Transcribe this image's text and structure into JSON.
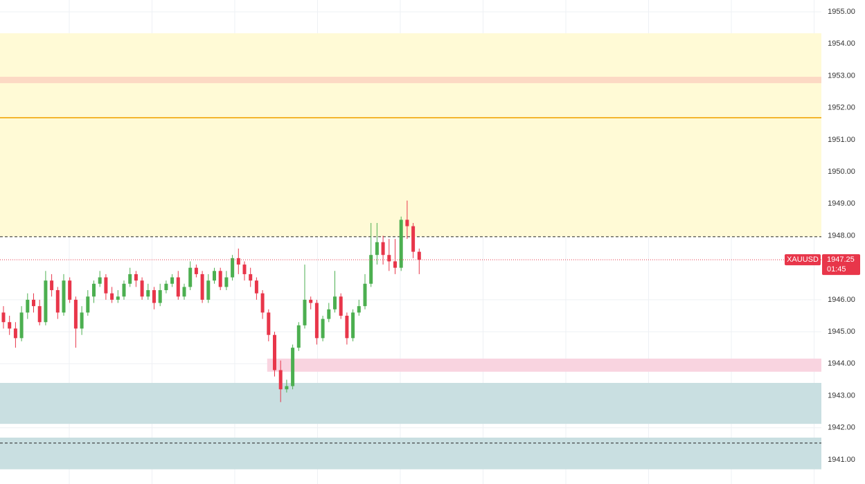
{
  "chart_data": {
    "type": "candlestick",
    "symbol": "XAUUSD",
    "countdown": "01:45",
    "up_color": "#4caf50",
    "down_color": "#e8364a",
    "grid": true,
    "ylim": [
      1940.24,
      1955.37
    ],
    "yticks": [
      {
        "value": 1941,
        "label": "1941.00"
      },
      {
        "value": 1942,
        "label": "1942.00"
      },
      {
        "value": 1943,
        "label": "1943.00"
      },
      {
        "value": 1944,
        "label": "1944.00"
      },
      {
        "value": 1945,
        "label": "1945.00"
      },
      {
        "value": 1946,
        "label": "1946.00"
      },
      {
        "value": 1948,
        "label": "1948.00"
      },
      {
        "value": 1949,
        "label": "1949.00"
      },
      {
        "value": 1950,
        "label": "1950.00"
      },
      {
        "value": 1951,
        "label": "1951.00"
      },
      {
        "value": 1952,
        "label": "1952.00"
      },
      {
        "value": 1953,
        "label": "1953.00"
      },
      {
        "value": 1954,
        "label": "1954.00"
      },
      {
        "value": 1955,
        "label": "1955.00"
      }
    ],
    "open": [
      1945.6,
      1945.3,
      1945.1,
      1944.8,
      1945.6,
      1946.0,
      1945.8,
      1945.3,
      1946.6,
      1946.3,
      1945.6,
      1946.6,
      1946.0,
      1945.1,
      1945.6,
      1946.1,
      1946.5,
      1946.7,
      1946.2,
      1946.0,
      1946.1,
      1946.5,
      1946.8,
      1946.6,
      1946.1,
      1946.3,
      1945.9,
      1946.3,
      1946.5,
      1946.7,
      1946.1,
      1946.4,
      1947.0,
      1946.8,
      1946.0,
      1946.6,
      1946.9,
      1946.4,
      1946.7,
      1947.3,
      1947.1,
      1946.8,
      1946.6,
      1946.2,
      1945.6,
      1944.9,
      1943.8,
      1943.2,
      1943.3,
      1944.5,
      1945.2,
      1946.0,
      1945.9,
      1944.8,
      1945.4,
      1945.7,
      1946.1,
      1945.5,
      1944.8,
      1945.6,
      1945.8,
      1946.5,
      1947.4,
      1947.8,
      1947.4,
      1947.2,
      1947.0,
      1948.5,
      1948.3,
      1947.5
    ],
    "high": [
      1945.8,
      1945.5,
      1945.3,
      1945.8,
      1946.2,
      1946.2,
      1946.0,
      1946.9,
      1946.8,
      1946.4,
      1946.8,
      1946.7,
      1946.1,
      1945.8,
      1946.3,
      1946.6,
      1946.9,
      1946.8,
      1946.4,
      1946.3,
      1946.6,
      1947.0,
      1946.9,
      1946.7,
      1946.5,
      1946.4,
      1946.5,
      1946.6,
      1946.8,
      1946.9,
      1946.5,
      1947.2,
      1947.1,
      1946.9,
      1946.8,
      1947.0,
      1947.0,
      1946.9,
      1947.4,
      1947.6,
      1947.2,
      1947.0,
      1946.7,
      1946.3,
      1945.7,
      1945.0,
      1944.1,
      1943.5,
      1944.6,
      1945.3,
      1947.1,
      1946.1,
      1946.0,
      1945.5,
      1945.9,
      1946.9,
      1946.2,
      1945.6,
      1945.7,
      1946.0,
      1946.8,
      1948.4,
      1948.4,
      1948.0,
      1947.9,
      1947.9,
      1948.6,
      1949.1,
      1948.4,
      1947.6
    ],
    "low": [
      1945.1,
      1944.9,
      1944.5,
      1944.7,
      1945.4,
      1945.6,
      1945.2,
      1945.2,
      1946.1,
      1945.4,
      1945.5,
      1945.9,
      1944.5,
      1944.9,
      1945.5,
      1945.9,
      1946.4,
      1946.0,
      1945.9,
      1945.9,
      1946.0,
      1946.4,
      1946.4,
      1946.0,
      1946.0,
      1945.7,
      1945.8,
      1946.2,
      1946.4,
      1946.0,
      1946.0,
      1946.3,
      1946.7,
      1945.9,
      1945.9,
      1946.5,
      1946.3,
      1946.3,
      1946.6,
      1946.8,
      1946.6,
      1946.4,
      1946.0,
      1945.4,
      1944.7,
      1943.6,
      1942.8,
      1943.1,
      1943.2,
      1944.4,
      1945.1,
      1945.7,
      1944.6,
      1944.7,
      1945.3,
      1945.6,
      1945.4,
      1944.6,
      1944.7,
      1945.5,
      1945.7,
      1946.4,
      1947.1,
      1947.1,
      1946.9,
      1946.8,
      1946.9,
      1947.9,
      1947.3,
      1946.8
    ],
    "close": [
      1945.3,
      1945.1,
      1944.8,
      1945.6,
      1946.0,
      1945.8,
      1945.3,
      1946.6,
      1946.3,
      1945.6,
      1946.6,
      1946.0,
      1945.1,
      1945.6,
      1946.1,
      1946.5,
      1946.7,
      1946.2,
      1946.0,
      1946.1,
      1946.5,
      1946.8,
      1946.6,
      1946.1,
      1946.3,
      1945.9,
      1946.3,
      1946.5,
      1946.7,
      1946.1,
      1946.4,
      1947.0,
      1946.8,
      1946.0,
      1946.6,
      1946.9,
      1946.4,
      1946.7,
      1947.3,
      1947.1,
      1946.8,
      1946.6,
      1946.2,
      1945.6,
      1944.9,
      1943.8,
      1943.2,
      1943.3,
      1944.5,
      1945.2,
      1946.0,
      1945.9,
      1944.8,
      1945.4,
      1945.7,
      1946.1,
      1945.5,
      1944.8,
      1945.6,
      1945.8,
      1946.5,
      1947.4,
      1947.8,
      1947.4,
      1947.2,
      1947.0,
      1948.5,
      1948.3,
      1947.5,
      1947.25
    ],
    "zones": [
      {
        "from": 1947.97,
        "to": 1954.33,
        "color": "#fffad6"
      },
      {
        "from": 1952.77,
        "to": 1952.97,
        "color": "#fcd9c4"
      },
      {
        "from": 1943.75,
        "to": 1944.16,
        "color": "#f9d4e0",
        "start_bar": 44
      },
      {
        "from": 1942.12,
        "to": 1943.4,
        "color": "#c9dfe1"
      },
      {
        "from": 1940.7,
        "to": 1941.69,
        "color": "#c9dfe1"
      }
    ],
    "lines": [
      {
        "value": 1951.69,
        "color": "#f4b52e",
        "style": "solid"
      },
      {
        "value": 1947.97,
        "color": "#222222",
        "style": "dashed"
      },
      {
        "value": 1941.52,
        "color": "#222222",
        "style": "dashed"
      }
    ]
  }
}
